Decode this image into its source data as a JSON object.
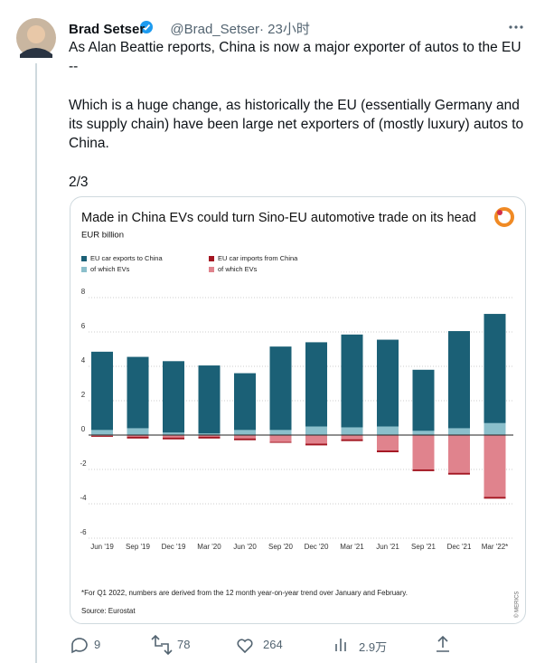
{
  "tweet": {
    "name": "Brad Setser",
    "handle": "@Brad_Setser",
    "time": "· 23小时",
    "paragraphs": [
      "As Alan Beattie reports, China is now a major exporter of autos to the EU --",
      "Which is a huge change, as historically the EU (essentially Germany and its supply chain) have been large net exporters of (mostly luxury) autos to China.",
      "2/3"
    ],
    "replies": 9,
    "retweets": 78,
    "likes": 264,
    "views": "2.9万"
  },
  "chart_data": {
    "type": "bar",
    "title": "Made in China EVs could turn Sino-EU automotive trade on its head",
    "subtitle": "EUR billion",
    "note": "*For Q1 2022, numbers are derived from the 12 month year-on-year trend over January and February.",
    "source": "Source: Eurostat",
    "credit": "© MERICS",
    "categories": [
      "Jun '19",
      "Sep '19",
      "Dec '19",
      "Mar '20",
      "Jun '20",
      "Sep '20",
      "Dec '20",
      "Mar '21",
      "Jun '21",
      "Sep '21",
      "Dec '21",
      "Mar '22*"
    ],
    "series": [
      {
        "name": "EU car exports to China",
        "color": "#1b6076",
        "values": [
          4.85,
          4.55,
          4.3,
          4.05,
          3.6,
          5.15,
          5.4,
          5.85,
          5.55,
          3.8,
          6.05,
          7.05
        ]
      },
      {
        "name": "of which EVs",
        "color": "#8bbfcb",
        "values": [
          0.3,
          0.4,
          0.15,
          0.1,
          0.3,
          0.3,
          0.5,
          0.45,
          0.5,
          0.25,
          0.4,
          0.7
        ]
      },
      {
        "name": "EU car imports from China",
        "color": "#a31621",
        "values": [
          -0.1,
          -0.2,
          -0.25,
          -0.2,
          -0.3,
          -0.45,
          -0.6,
          -0.35,
          -1.0,
          -2.1,
          -2.3,
          -3.7
        ]
      },
      {
        "name": "of which EVs",
        "color": "#e0838d",
        "values": [
          -0.05,
          -0.1,
          -0.15,
          -0.1,
          -0.2,
          -0.4,
          -0.5,
          -0.25,
          -0.9,
          -2.0,
          -2.2,
          -3.6
        ]
      }
    ],
    "ylim": [
      -6,
      8
    ],
    "yticks": [
      -6,
      -4,
      -2,
      0,
      2,
      4,
      6,
      8
    ],
    "grid": true
  }
}
